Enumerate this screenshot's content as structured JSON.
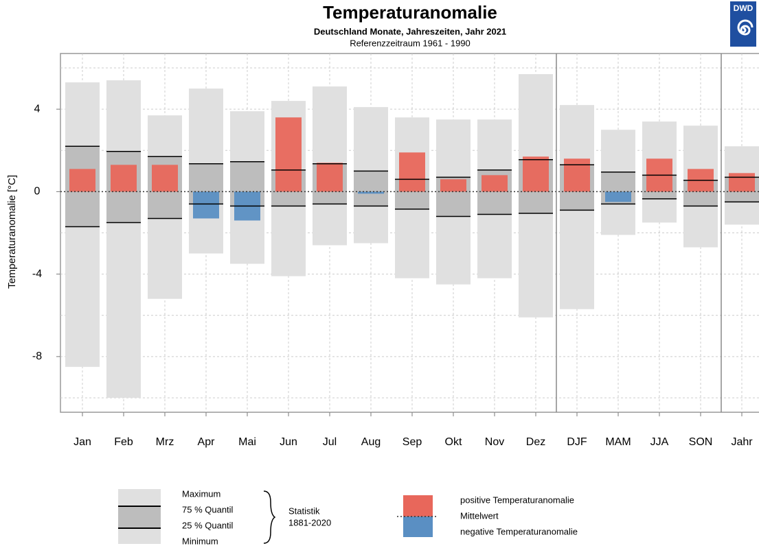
{
  "chart_data": {
    "type": "range_bar",
    "title": "Temperaturanomalie",
    "subtitle": "Deutschland Monate, Jahreszeiten, Jahr 2021",
    "reference": "Referenzzeitraum 1961 - 1990",
    "logo": "DWD",
    "y_label": "Temperaturanomalie [°C]",
    "categories": [
      "Jan",
      "Feb",
      "Mrz",
      "Apr",
      "Mai",
      "Jun",
      "Jul",
      "Aug",
      "Sep",
      "Okt",
      "Nov",
      "Dez",
      "DJF",
      "MAM",
      "JJA",
      "SON",
      "Jahr"
    ],
    "maximum": [
      5.3,
      5.4,
      3.7,
      5.0,
      3.9,
      4.4,
      5.1,
      4.1,
      3.6,
      3.5,
      3.5,
      5.7,
      4.2,
      3.0,
      3.4,
      3.2,
      2.2
    ],
    "q75": [
      2.2,
      1.95,
      1.7,
      1.35,
      1.45,
      1.05,
      1.35,
      1.0,
      0.6,
      0.7,
      1.05,
      1.55,
      1.3,
      0.95,
      0.8,
      0.55,
      0.7
    ],
    "q25": [
      -1.7,
      -1.5,
      -1.3,
      -0.6,
      -0.7,
      -0.7,
      -0.6,
      -0.7,
      -0.85,
      -1.2,
      -1.1,
      -1.05,
      -0.9,
      -0.6,
      -0.35,
      -0.7,
      -0.5
    ],
    "minimum": [
      -8.5,
      -10.0,
      -5.2,
      -3.0,
      -3.5,
      -4.1,
      -2.6,
      -2.5,
      -4.2,
      -4.5,
      -4.2,
      -6.1,
      -5.7,
      -2.1,
      -1.5,
      -2.7,
      -1.6
    ],
    "anomaly": [
      1.1,
      1.3,
      1.3,
      -1.3,
      -1.4,
      3.6,
      1.4,
      -0.1,
      1.9,
      0.6,
      0.8,
      1.7,
      1.6,
      -0.5,
      1.6,
      1.1,
      0.9
    ],
    "colors": {
      "range": "#e0e0e0",
      "quartile": "#bdbdbd",
      "positive": "#e8675b",
      "negative": "#5a8fc3"
    },
    "ylim": [
      -10.7,
      6.7
    ],
    "yticks": [
      -8,
      -4,
      0,
      4
    ],
    "minor_grid": [
      -10,
      -6,
      -2,
      2,
      6
    ],
    "grid": true,
    "separators_after": [
      11,
      15
    ],
    "legend": {
      "maximum": "Maximum",
      "q75": "75 % Quantil",
      "q25": "25 % Quantil",
      "minimum": "Minimum",
      "statistik": "Statistik",
      "period": "1881-2020",
      "positive": "positive Temperaturanomalie",
      "mean": "Mittelwert",
      "negative": "negative Temperaturanomalie"
    }
  }
}
